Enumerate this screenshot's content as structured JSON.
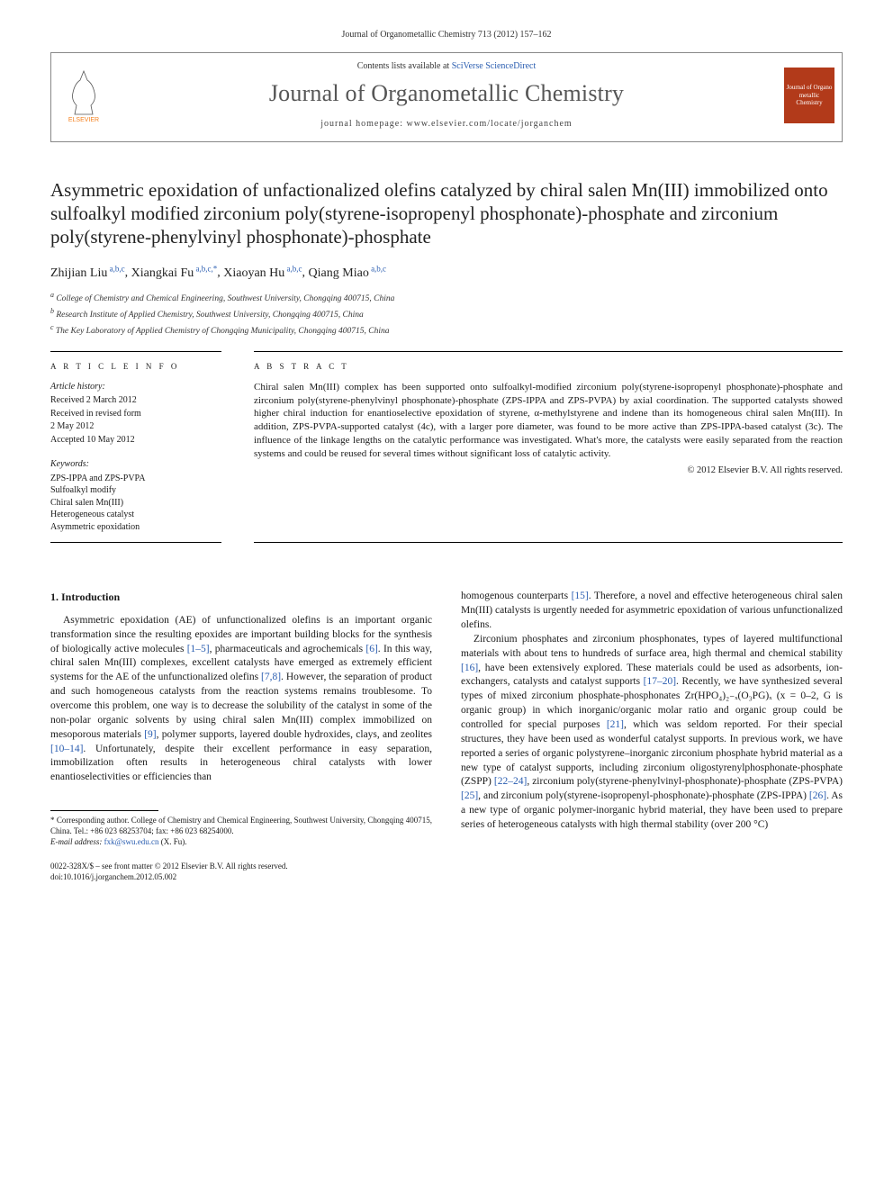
{
  "topRef": "Journal of Organometallic Chemistry 713 (2012) 157–162",
  "header": {
    "contentsPrefix": "Contents lists available at ",
    "contentsLink": "SciVerse ScienceDirect",
    "journalName": "Journal of Organometallic Chemistry",
    "homepagePrefix": "journal homepage: ",
    "homepageUrl": "www.elsevier.com/locate/jorganchem",
    "publisherLogoLabel": "ELSEVIER",
    "coverLabel": "Journal of Organo metallic Chemistry",
    "colors": {
      "publisherOrange": "#f58220",
      "coverBg": "#b23a1a",
      "linkColor": "#2a5db0"
    }
  },
  "title": "Asymmetric epoxidation of unfactionalized olefins catalyzed by chiral salen Mn(III) immobilized onto sulfoalkyl modified zirconium poly(styrene-isopropenyl phosphonate)-phosphate and zirconium poly(styrene-phenylvinyl phosphonate)-phosphate",
  "authors": [
    {
      "name": "Zhijian Liu",
      "sup": "a,b,c"
    },
    {
      "name": "Xiangkai Fu",
      "sup": "a,b,c,*"
    },
    {
      "name": "Xiaoyan Hu",
      "sup": "a,b,c"
    },
    {
      "name": "Qiang Miao",
      "sup": "a,b,c"
    }
  ],
  "affiliations": [
    {
      "tag": "a",
      "text": "College of Chemistry and Chemical Engineering, Southwest University, Chongqing 400715, China"
    },
    {
      "tag": "b",
      "text": "Research Institute of Applied Chemistry, Southwest University, Chongqing 400715, China"
    },
    {
      "tag": "c",
      "text": "The Key Laboratory of Applied Chemistry of Chongqing Municipality, Chongqing 400715, China"
    }
  ],
  "articleInfo": {
    "heading": "A R T I C L E   I N F O",
    "historyLabel": "Article history:",
    "history": [
      "Received 2 March 2012",
      "Received in revised form",
      "2 May 2012",
      "Accepted 10 May 2012"
    ],
    "keywordsLabel": "Keywords:",
    "keywords": [
      "ZPS-IPPA and ZPS-PVPA",
      "Sulfoalkyl modify",
      "Chiral salen Mn(III)",
      "Heterogeneous catalyst",
      "Asymmetric epoxidation"
    ]
  },
  "abstract": {
    "heading": "A B S T R A C T",
    "text": "Chiral salen Mn(III) complex has been supported onto sulfoalkyl-modified zirconium poly(styrene-isopropenyl phosphonate)-phosphate and zirconium poly(styrene-phenylvinyl phosphonate)-phosphate (ZPS-IPPA and ZPS-PVPA) by axial coordination. The supported catalysts showed higher chiral induction for enantioselective epoxidation of styrene, α-methylstyrene and indene than its homogeneous chiral salen Mn(III). In addition, ZPS-PVPA-supported catalyst (4c), with a larger pore diameter, was found to be more active than ZPS-IPPA-based catalyst (3c). The influence of the linkage lengths on the catalytic performance was investigated. What's more, the catalysts were easily separated from the reaction systems and could be reused for several times without significant loss of catalytic activity.",
    "copyright": "© 2012 Elsevier B.V. All rights reserved."
  },
  "section1": {
    "heading": "1. Introduction",
    "para1a": "Asymmetric epoxidation (AE) of unfunctionalized olefins is an important organic transformation since the resulting epoxides are important building blocks for the synthesis of biologically active molecules ",
    "cite1": "[1–5]",
    "para1b": ", pharmaceuticals and agrochemicals ",
    "cite2": "[6]",
    "para1c": ". In this way, chiral salen Mn(III) complexes, excellent catalysts have emerged as extremely efficient systems for the AE of the unfunctionalized olefins ",
    "cite3": "[7,8]",
    "para1d": ". However, the separation of product and such homogeneous catalysts from the reaction systems remains troublesome. To overcome this problem, one way is to decrease the solubility of the catalyst in some of the non-polar organic solvents by using chiral salen Mn(III) complex immobilized on mesoporous materials ",
    "cite4": "[9]",
    "para1e": ", polymer supports, layered double hydroxides, clays, and zeolites ",
    "cite5": "[10–14]",
    "para1f": ". Unfortunately, despite their excellent performance in easy separation, immobilization often results in heterogeneous chiral catalysts with lower enantioselectivities or efficiencies than",
    "para2a": "homogenous counterparts ",
    "cite6": "[15]",
    "para2b": ". Therefore, a novel and effective heterogeneous chiral salen Mn(III) catalysts is urgently needed for asymmetric epoxidation of various unfunctionalized olefins.",
    "para3a": "Zirconium phosphates and zirconium phosphonates, types of layered multifunctional materials with about tens to hundreds of surface area, high thermal and chemical stability ",
    "cite7": "[16]",
    "para3b": ", have been extensively explored. These materials could be used as adsorbents, ion-exchangers, catalysts and catalyst supports ",
    "cite8": "[17–20]",
    "para3c": ". Recently, we have synthesized several types of mixed zirconium phosphate-phosphonates Zr(HPO₄)₂₋ₓ(O₃PG)ₓ (x = 0–2, G is organic group) in which inorganic/organic molar ratio and organic group could be controlled for special purposes ",
    "cite9": "[21]",
    "para3d": ", which was seldom reported. For their special structures, they have been used as wonderful catalyst supports. In previous work, we have reported a series of organic polystyrene–inorganic zirconium phosphate hybrid material as a new type of catalyst supports, including zirconium oligostyrenylphosphonate-phosphate (ZSPP) ",
    "cite10": "[22–24]",
    "para3e": ", zirconium poly(styrene-phenylvinyl-phosphonate)-phosphate (ZPS-PVPA) ",
    "cite11": "[25]",
    "para3f": ", and zirconium poly(styrene-isopropenyl-phosphonate)-phosphate (ZPS-IPPA) ",
    "cite12": "[26]",
    "para3g": ". As a new type of organic polymer-inorganic hybrid material, they have been used to prepare series of heterogeneous catalysts with high thermal stability (over 200 °C)"
  },
  "footnote": {
    "correspLabel": "* Corresponding author.",
    "correspText": " College of Chemistry and Chemical Engineering, Southwest University, Chongqing 400715, China. Tel.: +86 023 68253704; fax: +86 023 68254000.",
    "emailLabel": "E-mail address: ",
    "email": "fxk@swu.edu.cn",
    "emailSuffix": " (X. Fu)."
  },
  "footer": {
    "line1": "0022-328X/$ – see front matter © 2012 Elsevier B.V. All rights reserved.",
    "line2": "doi:10.1016/j.jorganchem.2012.05.002"
  }
}
